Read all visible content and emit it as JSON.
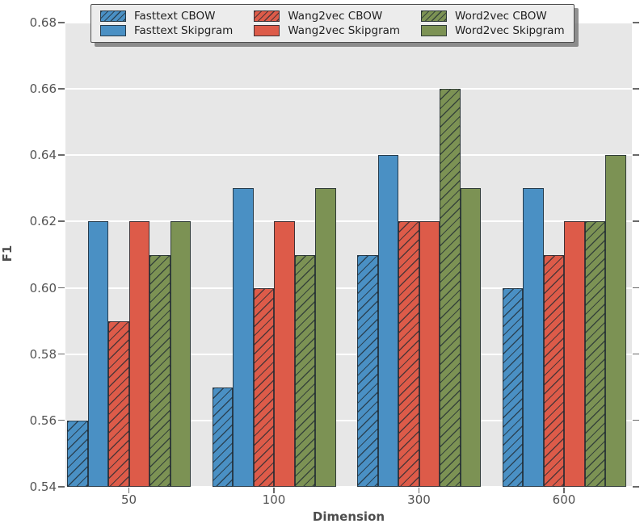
{
  "chart_data": {
    "type": "bar",
    "title": "",
    "xlabel": "Dimension",
    "ylabel": "F1",
    "categories": [
      "50",
      "100",
      "300",
      "600"
    ],
    "series": [
      {
        "name": "Fasttext CBOW",
        "color": "#4a90c4",
        "hatch": true,
        "values": [
          0.56,
          0.57,
          0.61,
          0.6
        ]
      },
      {
        "name": "Fasttext Skipgram",
        "color": "#4a90c4",
        "hatch": false,
        "values": [
          0.62,
          0.63,
          0.64,
          0.63
        ]
      },
      {
        "name": "Wang2vec CBOW",
        "color": "#dd5b49",
        "hatch": true,
        "values": [
          0.59,
          0.6,
          0.62,
          0.61
        ]
      },
      {
        "name": "Wang2vec Skipgram",
        "color": "#dd5b49",
        "hatch": false,
        "values": [
          0.62,
          0.62,
          0.62,
          0.62
        ]
      },
      {
        "name": "Word2vec CBOW",
        "color": "#7c9254",
        "hatch": true,
        "values": [
          0.61,
          0.61,
          0.66,
          0.62
        ]
      },
      {
        "name": "Word2vec Skipgram",
        "color": "#7c9254",
        "hatch": false,
        "values": [
          0.62,
          0.63,
          0.63,
          0.64
        ]
      }
    ],
    "ylim": [
      0.54,
      0.68
    ],
    "ytick_step": 0.02,
    "ytick_labels": [
      "0.68",
      "0.66",
      "0.64",
      "0.62",
      "0.60",
      "0.58",
      "0.56",
      "0.54"
    ],
    "grid": true,
    "grid_color": "#ffffff",
    "plot_background": "#e7e7e7",
    "legend_position": "top",
    "legend_columns": 3
  }
}
